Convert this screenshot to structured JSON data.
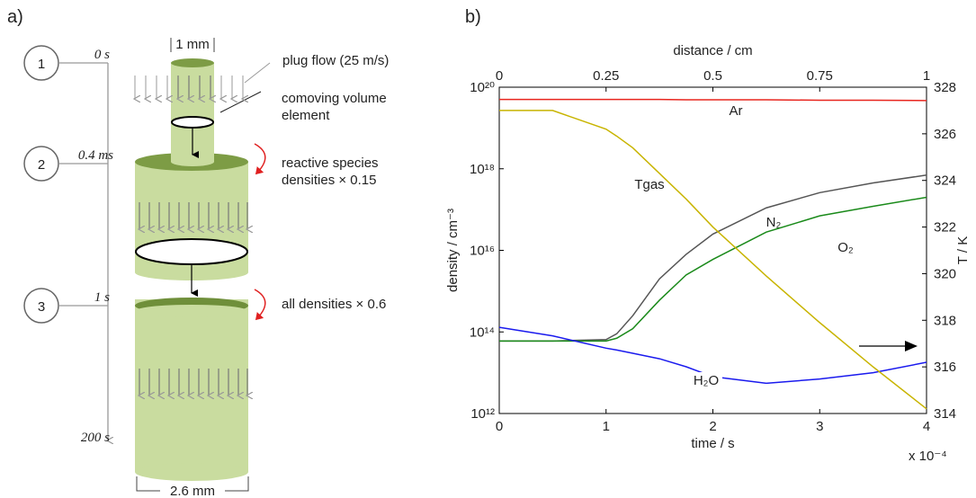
{
  "panel_a": {
    "label": "a)",
    "steps": [
      {
        "number": "1",
        "time": "0 s"
      },
      {
        "number": "2",
        "time": "0.4 ms"
      },
      {
        "number": "3",
        "time": "1 s"
      }
    ],
    "time_end": "200 s",
    "inner_width": "1 mm",
    "outer_width": "2.6 mm",
    "annotations": [
      "plug flow (25 m/s)",
      "comoving volume element",
      "reactive species densities × 0.15",
      "all densities × 0.6"
    ]
  },
  "chart_data": {
    "type": "line",
    "panel_label": "b)",
    "x_label": "time / s",
    "x_multiplier": "x 10⁻⁴",
    "y_label": "density / cm⁻³",
    "y2_label": "T / K",
    "x2_label": "distance / cm",
    "x": [
      0,
      0.5,
      1,
      1.1,
      1.25,
      1.5,
      1.75,
      2,
      2.5,
      3,
      3.5,
      4
    ],
    "xlim": [
      0,
      4
    ],
    "xticks": [
      0,
      1,
      2,
      3,
      4
    ],
    "x2lim": [
      0,
      1
    ],
    "x2ticks": [
      0,
      0.25,
      0.5,
      0.75,
      1
    ],
    "ylim": [
      1000000000000.0,
      1e+20
    ],
    "log_y": true,
    "yticks": [
      {
        "value": 1000000000000.0,
        "label": "10¹²"
      },
      {
        "value": 100000000000000.0,
        "label": "10¹⁴"
      },
      {
        "value": 1e+16,
        "label": "10¹⁶"
      },
      {
        "value": 1e+18,
        "label": "10¹⁸"
      },
      {
        "value": 1e+20,
        "label": "10²⁰"
      }
    ],
    "y2lim": [
      314,
      328
    ],
    "y2ticks": [
      314,
      316,
      318,
      320,
      322,
      324,
      326,
      328
    ],
    "series": [
      {
        "name": "Ar",
        "color": "#e8261f",
        "values": [
          5e+19,
          5e+19,
          5e+19,
          5e+19,
          5e+19,
          5e+19,
          4.9e+19,
          4.9e+19,
          4.9e+19,
          4.8e+19,
          4.8e+19,
          4.7e+19
        ]
      },
      {
        "name": "N₂",
        "color": "#555555",
        "values": [
          60000000000000.0,
          60000000000000.0,
          65000000000000.0,
          90000000000000.0,
          250000000000000.0,
          2000000000000000.0,
          8000000000000000.0,
          2.5e+16,
          1.1e+17,
          2.6e+17,
          4.5e+17,
          7e+17
        ]
      },
      {
        "name": "O₂",
        "color": "#1a8a1a",
        "values": [
          60000000000000.0,
          60000000000000.0,
          60000000000000.0,
          70000000000000.0,
          120000000000000.0,
          600000000000000.0,
          2500000000000000.0,
          6000000000000000.0,
          2.8e+16,
          7e+16,
          1.2e+17,
          2e+17
        ]
      },
      {
        "name": "H₂O",
        "color": "#1a1aee",
        "values": [
          130000000000000.0,
          80000000000000.0,
          40000000000000.0,
          36000000000000.0,
          30000000000000.0,
          22000000000000.0,
          14000000000000.0,
          8000000000000.0,
          5500000000000.0,
          7000000000000.0,
          10000000000000.0,
          18000000000000.0
        ]
      },
      {
        "name": "Tgas",
        "color": "#c8b400",
        "axis": "y2",
        "values": [
          327,
          327,
          326.2,
          325.9,
          325.4,
          324.3,
          323.2,
          322,
          319.9,
          317.9,
          316,
          314.2
        ]
      }
    ]
  }
}
